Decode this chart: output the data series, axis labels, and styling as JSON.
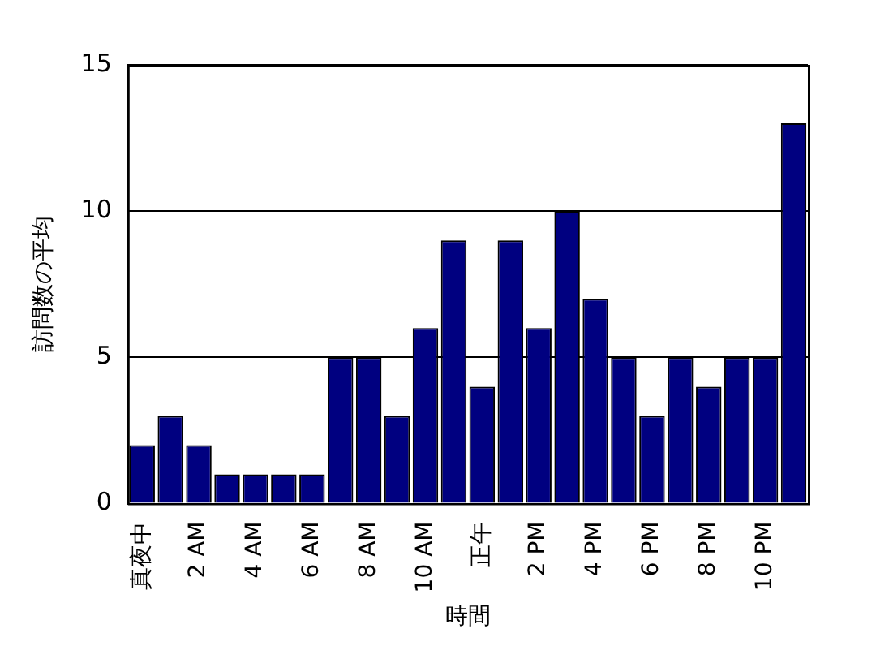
{
  "chart_data": {
    "type": "bar",
    "xlabel": "時間",
    "ylabel": "訪問数の平均",
    "categories": [
      "真夜中",
      null,
      "2 AM",
      null,
      "4 AM",
      null,
      "6 AM",
      null,
      "8 AM",
      null,
      "10 AM",
      null,
      "正午",
      null,
      "2 PM",
      null,
      "4 PM",
      null,
      "6 PM",
      null,
      "8 PM",
      null,
      "10 PM",
      null
    ],
    "values": [
      2,
      3,
      2,
      1,
      1,
      1,
      1,
      5,
      5,
      3,
      6,
      9,
      4,
      9,
      6,
      10,
      7,
      5,
      3,
      5,
      4,
      5,
      5,
      13
    ],
    "color": "#000080",
    "ylim": [
      0,
      15
    ],
    "yticks": [
      0,
      5,
      10,
      15
    ],
    "grid": "y",
    "legend": false
  }
}
